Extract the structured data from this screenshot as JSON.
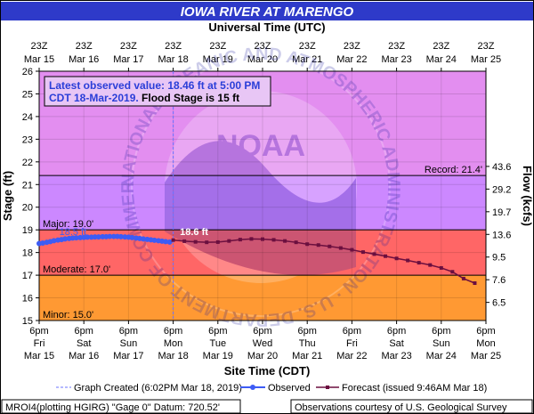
{
  "title": "IOWA RIVER AT MARENGO",
  "top_axis_label": "Universal Time (UTC)",
  "bottom_axis_label": "Site Time (CDT)",
  "left_axis_label": "Stage (ft)",
  "right_axis_label": "Flow (kcfs)",
  "info_box": {
    "line1": "Latest observed value: 18.46 ft at 5:00 PM",
    "line2_a": "CDT 18-Mar-2019.",
    "line2_b": " Flood Stage is 15 ft"
  },
  "watermark": {
    "text": "NOAA",
    "ring_text": "NATIONAL OCEANIC AND ATMOSPHERIC ADMINISTRATION · U.S. DEPARTMENT OF COMMERCE"
  },
  "legend": {
    "created": "Graph Created (6:02PM Mar 18, 2019)",
    "observed": "Observed",
    "forecast": "Forecast (issued 9:46AM Mar 18)"
  },
  "footer": {
    "left": "MROI4(plotting HGIRG) \"Gage 0\" Datum: 720.52'",
    "right": "Observations courtesy of U.S. Geological Survey"
  },
  "colors": {
    "record": "#e38ef0",
    "major": "#cc88ff",
    "moderate": "#ff6666",
    "minor": "#ff9933",
    "action": "#ffcc66",
    "observed": "#3d5cf5",
    "forecast": "#6b0f3f",
    "created_line": "#6b73ff",
    "title_bg": "#2e3ac9"
  },
  "chart_data": {
    "type": "line",
    "title": "IOWA RIVER AT MARENGO",
    "ylabel": "Stage (ft)",
    "y2label": "Flow (kcfs)",
    "xlabel": "Site Time (CDT)",
    "x2label": "Universal Time (UTC)",
    "x_range_days": [
      "Mar 15",
      "Mar 25"
    ],
    "ylim": [
      15,
      26
    ],
    "yticks": [
      15,
      16,
      17,
      18,
      19,
      20,
      21,
      22,
      23,
      24,
      25,
      26
    ],
    "flow_ticks": [
      {
        "stage": 15.8,
        "label": "6.5"
      },
      {
        "stage": 16.8,
        "label": "7.6"
      },
      {
        "stage": 17.8,
        "label": "9.5"
      },
      {
        "stage": 18.8,
        "label": "13.6"
      },
      {
        "stage": 19.8,
        "label": "19.7"
      },
      {
        "stage": 20.8,
        "label": "29.2"
      },
      {
        "stage": 21.8,
        "label": "43.6"
      }
    ],
    "x_ticks_cdt": [
      {
        "day": 0,
        "time": "6pm",
        "dow": "Fri",
        "date": "Mar 15"
      },
      {
        "day": 1,
        "time": "6pm",
        "dow": "Sat",
        "date": "Mar 16"
      },
      {
        "day": 2,
        "time": "6pm",
        "dow": "Sun",
        "date": "Mar 17"
      },
      {
        "day": 3,
        "time": "6pm",
        "dow": "Mon",
        "date": "Mar 18"
      },
      {
        "day": 4,
        "time": "6pm",
        "dow": "Tue",
        "date": "Mar 19"
      },
      {
        "day": 5,
        "time": "6pm",
        "dow": "Wed",
        "date": "Mar 20"
      },
      {
        "day": 6,
        "time": "6pm",
        "dow": "Thu",
        "date": "Mar 21"
      },
      {
        "day": 7,
        "time": "6pm",
        "dow": "Fri",
        "date": "Mar 22"
      },
      {
        "day": 8,
        "time": "6pm",
        "dow": "Sat",
        "date": "Mar 23"
      },
      {
        "day": 9,
        "time": "6pm",
        "dow": "Sun",
        "date": "Mar 24"
      },
      {
        "day": 10,
        "time": "6pm",
        "dow": "Mon",
        "date": "Mar 25"
      }
    ],
    "x_ticks_utc": [
      {
        "day": 0,
        "time": "23Z",
        "date": "Mar 15"
      },
      {
        "day": 1,
        "time": "23Z",
        "date": "Mar 16"
      },
      {
        "day": 2,
        "time": "23Z",
        "date": "Mar 17"
      },
      {
        "day": 3,
        "time": "23Z",
        "date": "Mar 18"
      },
      {
        "day": 4,
        "time": "23Z",
        "date": "Mar 19"
      },
      {
        "day": 5,
        "time": "23Z",
        "date": "Mar 20"
      },
      {
        "day": 6,
        "time": "23Z",
        "date": "Mar 21"
      },
      {
        "day": 7,
        "time": "23Z",
        "date": "Mar 22"
      },
      {
        "day": 8,
        "time": "23Z",
        "date": "Mar 23"
      },
      {
        "day": 9,
        "time": "23Z",
        "date": "Mar 24"
      },
      {
        "day": 10,
        "time": "23Z",
        "date": "Mar 25"
      }
    ],
    "thresholds": [
      {
        "name": "record",
        "label": "Record: 21.4'",
        "value": 21.4
      },
      {
        "name": "major",
        "label": "Major: 19.0'",
        "value": 19.0
      },
      {
        "name": "moderate",
        "label": "Moderate: 17.0'",
        "value": 17.0
      },
      {
        "name": "minor",
        "label": "Minor: 15.0'",
        "value": 15.0
      }
    ],
    "created_day": 3.0,
    "created_label": "18.5 ft",
    "forecast_peak_label": "18.6 ft",
    "observed": {
      "x": [
        0.0,
        0.08,
        0.17,
        0.25,
        0.33,
        0.42,
        0.5,
        0.58,
        0.67,
        0.75,
        0.83,
        0.92,
        1.0,
        1.08,
        1.17,
        1.25,
        1.33,
        1.42,
        1.5,
        1.58,
        1.67,
        1.75,
        1.83,
        1.92,
        2.0,
        2.08,
        2.17,
        2.25,
        2.33,
        2.42,
        2.5,
        2.58,
        2.67,
        2.75,
        2.83,
        2.92
      ],
      "y": [
        18.4,
        18.42,
        18.45,
        18.48,
        18.52,
        18.55,
        18.57,
        18.6,
        18.62,
        18.64,
        18.65,
        18.66,
        18.67,
        18.68,
        18.68,
        18.69,
        18.69,
        18.7,
        18.7,
        18.71,
        18.71,
        18.71,
        18.7,
        18.69,
        18.68,
        18.66,
        18.64,
        18.62,
        18.6,
        18.58,
        18.56,
        18.54,
        18.52,
        18.5,
        18.48,
        18.46
      ]
    },
    "forecast": {
      "x": [
        3.0,
        3.25,
        3.5,
        3.75,
        4.0,
        4.25,
        4.5,
        4.75,
        5.0,
        5.25,
        5.5,
        5.75,
        6.0,
        6.25,
        6.5,
        6.75,
        7.0,
        7.25,
        7.5,
        7.75,
        8.0,
        8.25,
        8.5,
        8.75,
        9.0,
        9.25,
        9.5,
        9.75
      ],
      "y": [
        18.55,
        18.5,
        18.47,
        18.45,
        18.46,
        18.51,
        18.57,
        18.6,
        18.59,
        18.56,
        18.51,
        18.45,
        18.37,
        18.33,
        18.27,
        18.2,
        18.12,
        18.02,
        17.93,
        17.84,
        17.74,
        17.65,
        17.55,
        17.45,
        17.32,
        17.15,
        16.85,
        16.65
      ]
    }
  }
}
